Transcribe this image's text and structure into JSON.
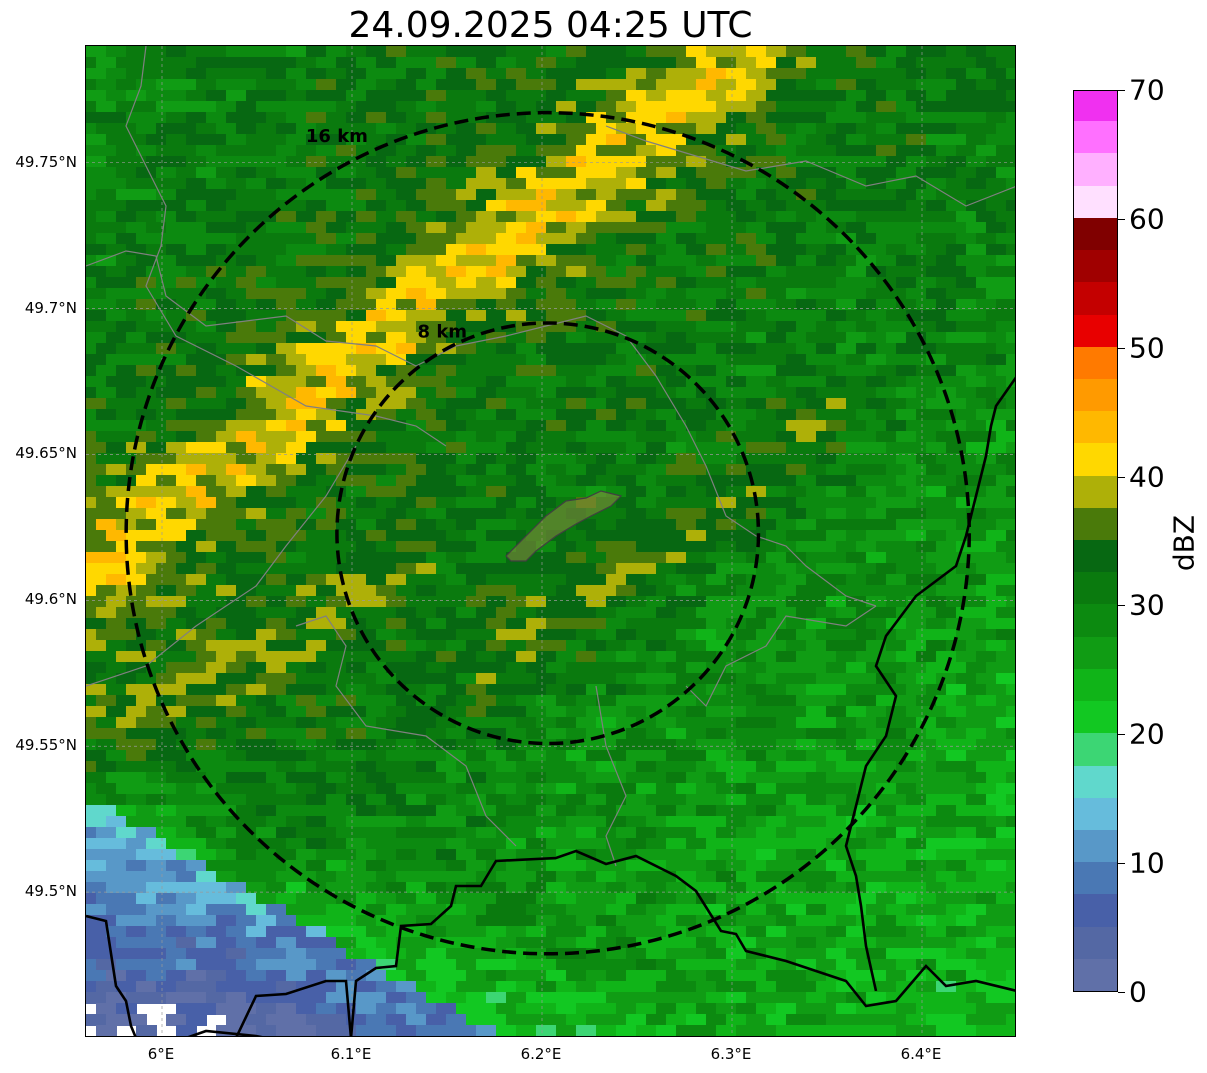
{
  "title": "24.09.2025 04:25 UTC",
  "map": {
    "lat_range": [
      49.45,
      49.79
    ],
    "lon_range": [
      5.96,
      6.45
    ],
    "radar_center": {
      "lat": 49.623,
      "lon": 6.203
    },
    "range_rings": [
      {
        "radius_km": 8,
        "label": "8 km"
      },
      {
        "radius_km": 16,
        "label": "16 km"
      }
    ],
    "y_ticks": [
      {
        "value": 49.75,
        "label": "49.75°N"
      },
      {
        "value": 49.7,
        "label": "49.7°N"
      },
      {
        "value": 49.65,
        "label": "49.65°N"
      },
      {
        "value": 49.6,
        "label": "49.6°N"
      },
      {
        "value": 49.55,
        "label": "49.55°N"
      },
      {
        "value": 49.5,
        "label": "49.5°N"
      }
    ],
    "x_ticks": [
      {
        "value": 6.0,
        "label": "6°E"
      },
      {
        "value": 6.1,
        "label": "6.1°E"
      },
      {
        "value": 6.2,
        "label": "6.2°E"
      },
      {
        "value": 6.3,
        "label": "6.3°E"
      },
      {
        "value": 6.4,
        "label": "6.4°E"
      }
    ],
    "gridlines": true,
    "features": [
      "country-borders",
      "canton-borders",
      "city-outline"
    ]
  },
  "colorbar": {
    "label": "dBZ",
    "min": 0,
    "max": 70,
    "tick_values": [
      0,
      10,
      20,
      30,
      40,
      50,
      60,
      70
    ],
    "tick_labels": [
      "0",
      "10",
      "20",
      "30",
      "40",
      "50",
      "60",
      "70"
    ],
    "colors": [
      "#6070a8",
      "#5468a4",
      "#4860a8",
      "#4a78b4",
      "#5898c8",
      "#66bcdc",
      "#60d8cc",
      "#3cd674",
      "#12c822",
      "#10b418",
      "#109c14",
      "#0c8a10",
      "#0a7a0e",
      "#076812",
      "#4a7a0a",
      "#aeb008",
      "#ffd800",
      "#ffb800",
      "#ff9a00",
      "#ff7a00",
      "#e80000",
      "#c40000",
      "#a00000",
      "#800000",
      "#ffe0ff",
      "#ffb0ff",
      "#ff70ff",
      "#f030f0"
    ]
  }
}
